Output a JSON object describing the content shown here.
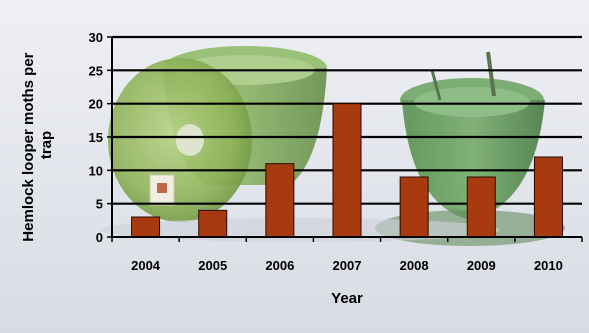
{
  "chart_data": {
    "type": "bar",
    "categories": [
      "2004",
      "2005",
      "2006",
      "2007",
      "2008",
      "2009",
      "2010"
    ],
    "values": [
      3,
      4,
      11,
      20,
      9,
      9,
      12
    ],
    "xlabel": "Year",
    "ylabel": "Hemlock looper moths per trap",
    "ylim": [
      0,
      30
    ],
    "yticks": [
      "0",
      "5",
      "10",
      "15",
      "20",
      "25",
      "30"
    ],
    "grid": true,
    "legend": "none",
    "bar_color": "#a83a10",
    "bar_border_color": "#2a0a00"
  },
  "background": {
    "description_icon": "green-pheromone-trap-photo"
  }
}
